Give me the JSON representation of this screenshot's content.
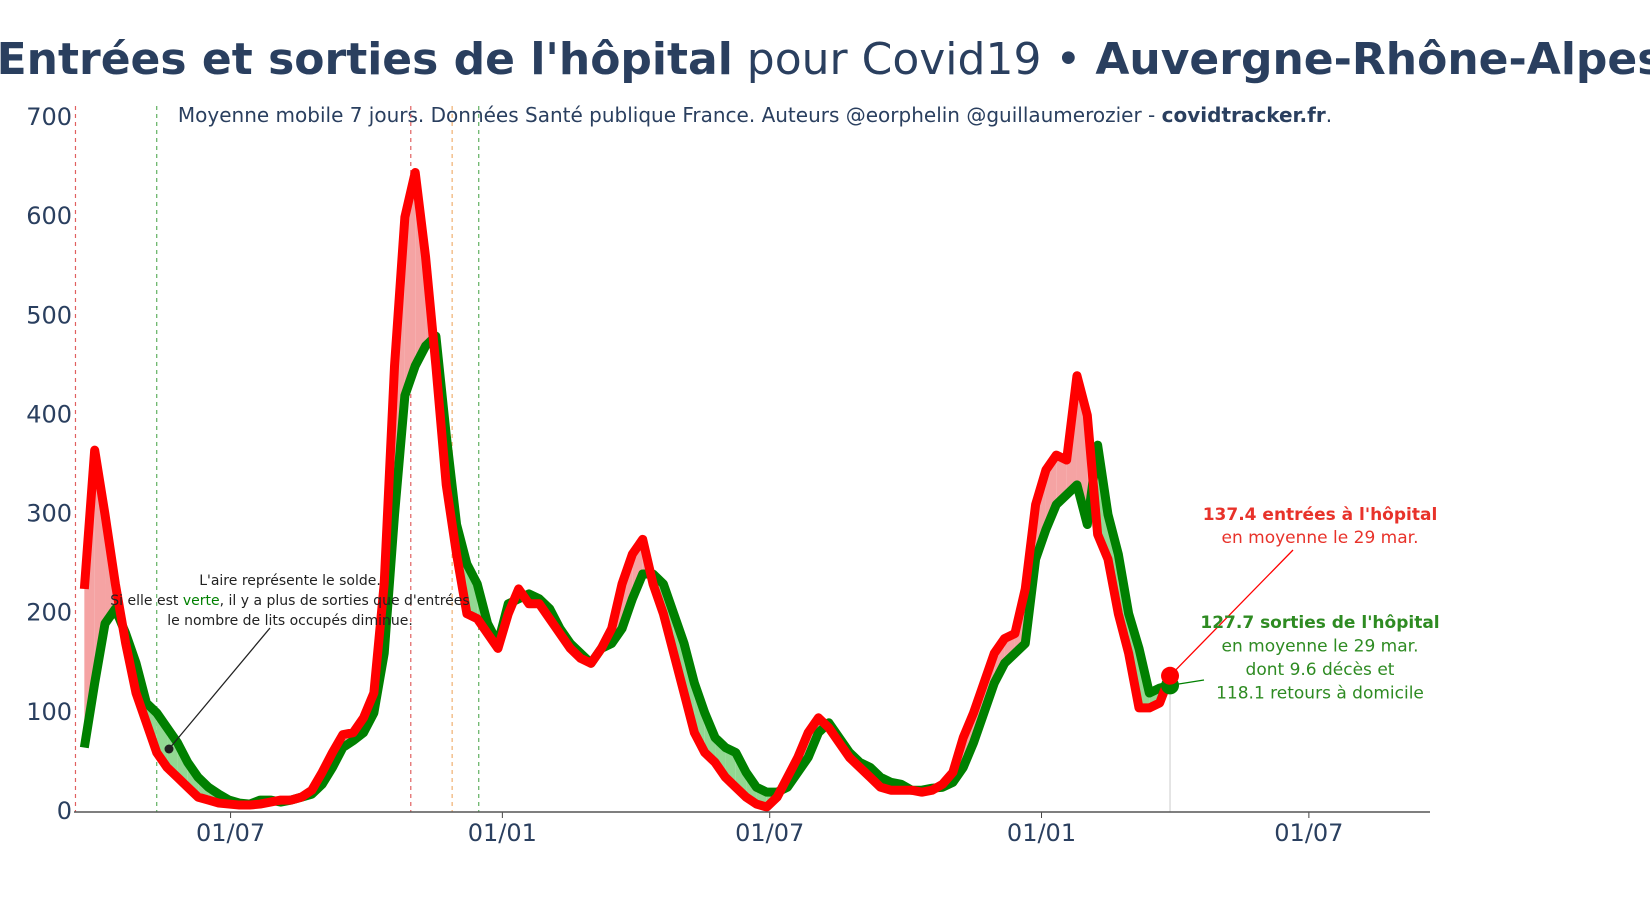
{
  "chart_data": {
    "type": "line",
    "title_parts": [
      {
        "text": "Entrées et sorties de l'hôpital",
        "bold": true
      },
      {
        "text": " pour Covid19 • ",
        "bold": false
      },
      {
        "text": "Auvergne-Rhône-Alpes",
        "bold": true
      }
    ],
    "subtitle_parts": [
      {
        "text": "Moyenne mobile 7 jours. Données Santé publique France. Auteurs @eorphelin @guillaumerozier - ",
        "bold": false
      },
      {
        "text": "covidtracker.fr",
        "bold": true
      },
      {
        "text": ".",
        "bold": false
      }
    ],
    "x": [
      -99,
      -92,
      -85,
      -78,
      -71,
      -64,
      -57,
      -50,
      -43,
      -36,
      -29,
      -22,
      -15,
      -8,
      -1,
      6,
      13,
      20,
      27,
      34,
      41,
      48,
      55,
      62,
      69,
      76,
      83,
      90,
      97,
      104,
      111,
      118,
      125,
      132,
      139,
      146,
      153,
      160,
      167,
      174,
      181,
      188,
      195,
      202,
      209,
      216,
      223,
      230,
      237,
      244,
      251,
      258,
      265,
      272,
      279,
      286,
      293,
      300,
      307,
      314,
      321,
      328,
      335,
      342,
      349,
      356,
      363,
      370,
      377,
      384,
      391,
      398,
      405,
      412,
      419,
      426,
      433,
      440,
      447,
      454,
      461,
      468,
      475,
      482,
      489,
      496,
      503,
      510,
      517,
      524,
      531,
      538,
      545,
      552,
      559,
      566,
      573,
      580,
      587,
      594,
      601,
      608,
      615,
      622,
      629,
      636
    ],
    "series": [
      {
        "name": "entrées",
        "color": "#ff0000",
        "fill": "#f5a3a3",
        "values": [
          225,
          365,
          300,
          230,
          170,
          120,
          90,
          60,
          45,
          35,
          25,
          15,
          12,
          9,
          8,
          7,
          7,
          8,
          10,
          12,
          12,
          15,
          22,
          40,
          60,
          78,
          80,
          95,
          120,
          230,
          450,
          600,
          645,
          560,
          450,
          330,
          260,
          200,
          195,
          180,
          165,
          200,
          225,
          210,
          210,
          195,
          180,
          165,
          155,
          150,
          165,
          185,
          230,
          260,
          275,
          230,
          200,
          160,
          120,
          80,
          60,
          50,
          35,
          25,
          15,
          8,
          5,
          15,
          35,
          55,
          80,
          95,
          85,
          70,
          55,
          45,
          35,
          25,
          22,
          22,
          22,
          20,
          22,
          28,
          40,
          75,
          100,
          130,
          160,
          175,
          180,
          225,
          310,
          345,
          360,
          355,
          440,
          400,
          280,
          255,
          200,
          160,
          105,
          105,
          110,
          137.4
        ]
      },
      {
        "name": "sorties",
        "color": "#008000",
        "fill": "#92d892",
        "values": [
          65,
          130,
          190,
          205,
          180,
          150,
          110,
          100,
          85,
          70,
          50,
          35,
          25,
          18,
          12,
          9,
          8,
          12,
          12,
          10,
          12,
          15,
          18,
          28,
          45,
          65,
          72,
          80,
          100,
          160,
          300,
          420,
          450,
          470,
          480,
          380,
          290,
          250,
          230,
          190,
          170,
          210,
          215,
          220,
          215,
          205,
          185,
          170,
          160,
          150,
          165,
          170,
          185,
          215,
          240,
          240,
          230,
          200,
          170,
          130,
          100,
          75,
          65,
          60,
          40,
          25,
          20,
          20,
          25,
          40,
          55,
          80,
          90,
          75,
          60,
          50,
          45,
          35,
          30,
          28,
          22,
          22,
          24,
          25,
          30,
          45,
          70,
          100,
          130,
          150,
          160,
          170,
          255,
          285,
          310,
          320,
          330,
          290,
          370,
          300,
          260,
          200,
          165,
          120,
          125,
          127.7
        ]
      }
    ],
    "vlines": [
      {
        "x": -105,
        "color": "#e06060"
      },
      {
        "x": -50,
        "color": "#60b060"
      },
      {
        "x": 122,
        "color": "#e06060"
      },
      {
        "x": 150,
        "color": "#f0b070"
      },
      {
        "x": 168,
        "color": "#60b060"
      }
    ],
    "xlim": [
      -106,
      812
    ],
    "xticks": [
      {
        "value": 0,
        "label": "01/07"
      },
      {
        "value": 184,
        "label": "01/01"
      },
      {
        "value": 365,
        "label": "01/07"
      },
      {
        "value": 549,
        "label": "01/01"
      },
      {
        "value": 730,
        "label": "01/07"
      }
    ],
    "ylim": [
      0,
      700
    ],
    "yticks": [
      0,
      100,
      200,
      300,
      400,
      500,
      600,
      700
    ],
    "grid": false,
    "annotation_left": [
      [
        {
          "text": "L'aire représente le solde.",
          "color": "#222222"
        }
      ],
      [
        {
          "text": "Si elle est ",
          "color": "#222222"
        },
        {
          "text": "verte",
          "color": "#008000"
        },
        {
          "text": ", il y a plus de sorties que d'entrées",
          "color": "#222222"
        }
      ],
      [
        {
          "text": "le nombre de lits occupés diminue.",
          "color": "#222222"
        }
      ]
    ],
    "annotation_red": [
      "137.4 entrées à l'hôpital",
      "en moyenne le 29 mar."
    ],
    "annotation_green": [
      "127.7 sorties de l'hôpital",
      "en moyenne le 29 mar.",
      "dont 9.6 décès et",
      "118.1 retours à domicile"
    ]
  }
}
